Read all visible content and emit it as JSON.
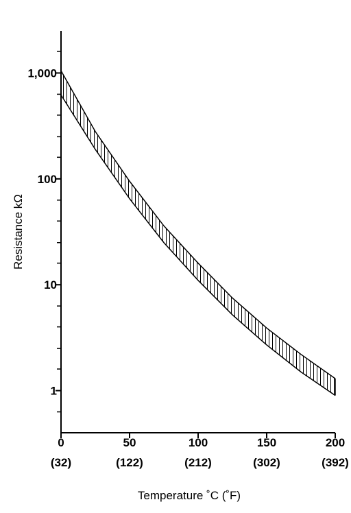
{
  "chart_data": {
    "type": "line",
    "x_label": "Temperature ˚C  (˚F)",
    "y_label": "Resistance kΩ",
    "x": [
      0,
      25,
      50,
      75,
      100,
      125,
      150,
      175,
      200
    ],
    "series": [
      {
        "color": "#000000",
        "values": [
          1050,
          280,
          95,
          36,
          16,
          7.5,
          3.9,
          2.2,
          1.3
        ]
      },
      {
        "color": "#000000",
        "values": [
          620,
          190,
          65,
          25,
          11,
          5.2,
          2.7,
          1.5,
          0.9
        ]
      }
    ],
    "band_hatch": "vertical",
    "xlim": [
      0,
      200
    ],
    "xticks": [
      0,
      50,
      100,
      150,
      200
    ],
    "xtick_labels_f": [
      "(32)",
      "(122)",
      "(212)",
      "(302)",
      "(392)"
    ],
    "ylim": [
      0.4,
      2500
    ],
    "ylog": true,
    "yticks": [
      1,
      10,
      100,
      {
        "value": 1000,
        "label": "1,000"
      }
    ],
    "yminorticks": [
      0.63,
      1.6,
      2.5,
      4,
      6.3,
      16,
      25,
      40,
      63,
      160,
      250,
      400,
      630,
      1600
    ],
    "grid": false
  }
}
